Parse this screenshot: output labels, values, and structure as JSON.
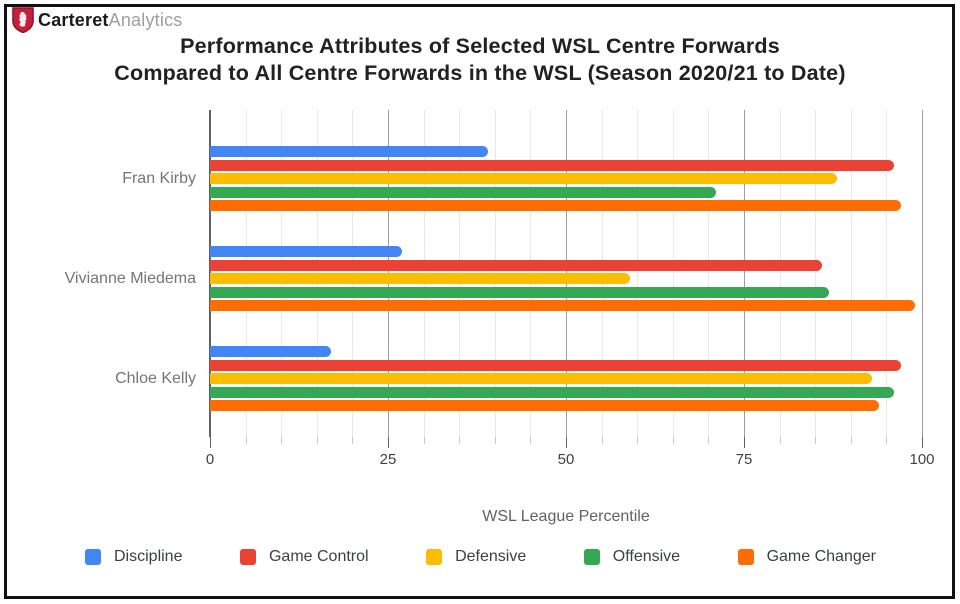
{
  "logo": {
    "brand_bold": "Carteret",
    "brand_light": "Analytics",
    "shield_color": "#c5203b",
    "shield_border_color": "#8e1627",
    "shield_emblem": "lion-rampant",
    "emblem_color": "#ffffff"
  },
  "title": {
    "line1": "Performance Attributes of Selected WSL Centre Forwards",
    "line2": "Compared to All Centre Forwards in the WSL (Season 2020/21 to Date)"
  },
  "chart_data": {
    "type": "bar",
    "orientation": "horizontal",
    "title": "Performance Attributes of Selected WSL Centre Forwards Compared to All Centre Forwards in the WSL (Season 2020/21 to Date)",
    "categories": [
      "Fran Kirby",
      "Vivianne Miedema",
      "Chloe Kelly"
    ],
    "series": [
      {
        "name": "Discipline",
        "color": "#4285F4",
        "values": [
          39,
          27,
          17
        ]
      },
      {
        "name": "Game Control",
        "color": "#EA4335",
        "values": [
          96,
          86,
          97
        ]
      },
      {
        "name": "Defensive",
        "color": "#FBBC04",
        "values": [
          88,
          59,
          93
        ]
      },
      {
        "name": "Offensive",
        "color": "#34A853",
        "values": [
          71,
          87,
          96
        ]
      },
      {
        "name": "Game Changer",
        "color": "#FF6D01",
        "values": [
          97,
          99,
          94
        ]
      }
    ],
    "xlabel": "WSL League Percentile",
    "xlim": [
      0,
      100
    ],
    "x_major_ticks": [
      0,
      25,
      50,
      75,
      100
    ],
    "x_minor_step": 5,
    "grid": true,
    "legend_position": "bottom"
  },
  "colors": {
    "grid_minor": "#e8e8e8",
    "grid_major": "#9e9e9e",
    "axis": "#616161",
    "row_label": "#757575",
    "tick_label": "#424242",
    "legend_label": "#3c4043"
  }
}
